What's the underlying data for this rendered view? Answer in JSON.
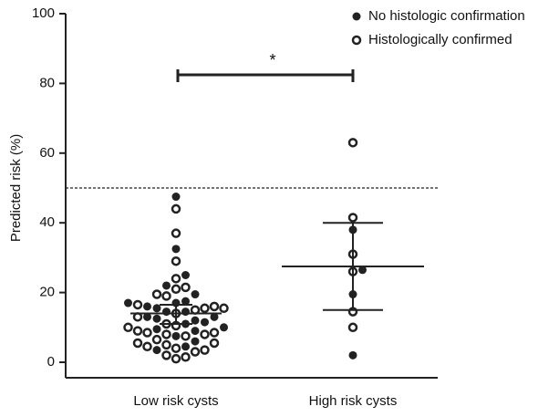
{
  "chart_data": {
    "type": "scatter",
    "ylabel": "Predicted risk (%)",
    "categories": [
      "Low risk cysts",
      "High risk cysts"
    ],
    "ylim": [
      0,
      100
    ],
    "yticks": [
      0,
      20,
      40,
      60,
      80,
      100
    ],
    "reference_line": 50,
    "significance": "*",
    "series": [
      {
        "name": "No histologic confirmation",
        "color": "#222222",
        "marker": "filled",
        "values": [
          [
            47.5,
            32.5,
            25,
            22,
            19.5,
            17.5,
            17,
            17,
            16,
            15.5,
            14.5,
            14.5,
            13,
            13,
            12.5,
            12,
            11.5,
            11,
            10,
            9.5,
            9,
            7.5,
            6,
            4.5,
            3.5
          ],
          [
            38,
            26.5,
            19.5,
            2
          ]
        ]
      },
      {
        "name": "Histologically confirmed",
        "color": "#222222",
        "marker": "open",
        "values": [
          [
            44,
            37,
            29,
            24,
            21.5,
            21,
            19.5,
            19,
            16.5,
            16,
            15.5,
            15.5,
            15,
            14,
            13,
            11,
            10.5,
            10,
            9,
            8.5,
            8.5,
            8,
            8,
            7.5,
            6.5,
            5.5,
            5.5,
            5,
            4.5,
            4,
            3.5,
            3,
            2,
            1.5,
            1
          ],
          [
            63,
            41.5,
            31,
            26,
            14.5,
            10
          ]
        ]
      }
    ],
    "summary": [
      {
        "center": 14,
        "upper": 16.5,
        "lower": 11
      },
      {
        "center": 27.5,
        "upper": 40,
        "lower": 15
      }
    ]
  }
}
